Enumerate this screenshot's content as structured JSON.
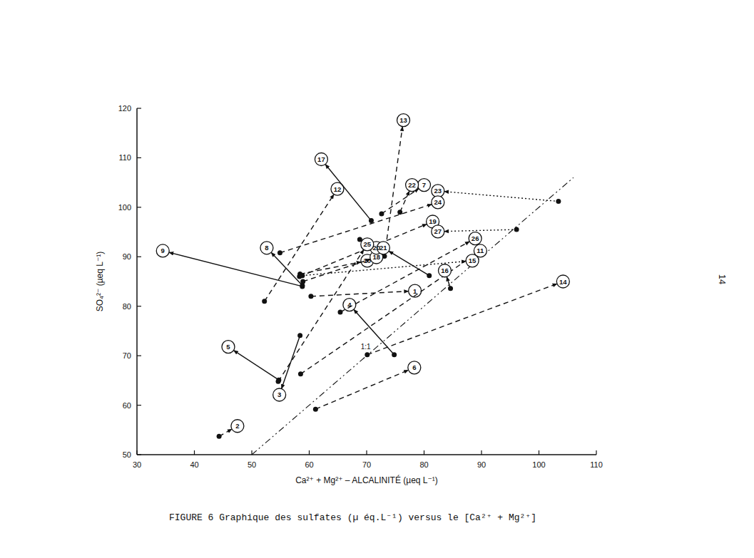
{
  "chart_data": {
    "type": "scatter",
    "title": "FIGURE 6  Graphique des sulfates (µ éq.L⁻¹) versus le [Ca²⁺ + Mg²⁺]",
    "page_number": "14",
    "x_label": "Ca²⁺ + Mg²⁺ – ALCALINITÉ  (µeq L⁻¹)",
    "y_label": "SO₄²⁻  (µeq L⁻¹)",
    "xlim": [
      30,
      110
    ],
    "ylim": [
      50,
      120
    ],
    "xticks": [
      30,
      40,
      50,
      60,
      70,
      80,
      90,
      100,
      110
    ],
    "yticks": [
      50,
      60,
      70,
      80,
      90,
      100,
      110,
      120
    ],
    "color": "#111111",
    "reference_line": {
      "label": "1:1",
      "x": [
        50,
        106
      ],
      "y": [
        50,
        106
      ],
      "line_style": "dashdot"
    },
    "series": [
      {
        "name": "1",
        "x": [
          60.3,
          78.4
        ],
        "values": [
          82.0,
          83.1
        ],
        "line_style": "dashed"
      },
      {
        "name": "2",
        "x": [
          44.3,
          47.5
        ],
        "values": [
          53.7,
          55.8
        ],
        "line_style": "dashed"
      },
      {
        "name": "3",
        "x": [
          58.4,
          54.8
        ],
        "values": [
          74.1,
          62.1
        ],
        "line_style": "solid"
      },
      {
        "name": "4",
        "x": [
          74.8,
          67.0
        ],
        "values": [
          70.2,
          80.3
        ],
        "line_style": "solid"
      },
      {
        "name": "5",
        "x": [
          54.7,
          45.9
        ],
        "values": [
          65.1,
          71.8
        ],
        "line_style": "solid"
      },
      {
        "name": "6",
        "x": [
          61.1,
          78.3
        ],
        "values": [
          59.2,
          67.6
        ],
        "line_style": "dashed"
      },
      {
        "name": "7",
        "x": [
          72.6,
          80.0
        ],
        "values": [
          98.7,
          104.5
        ],
        "line_style": "dashed"
      },
      {
        "name": "8",
        "x": [
          58.8,
          52.6
        ],
        "values": [
          84.2,
          91.8
        ],
        "line_style": "solid"
      },
      {
        "name": "9",
        "x": [
          58.8,
          34.5
        ],
        "values": [
          84.0,
          91.2
        ],
        "line_style": "solid"
      },
      {
        "name": "10",
        "x": [
          58.4,
          70.1
        ],
        "values": [
          86.5,
          89.2
        ],
        "line_style": "dashed"
      },
      {
        "name": "11",
        "x": [
          58.5,
          89.8
        ],
        "values": [
          66.3,
          91.2
        ],
        "line_style": "dashed"
      },
      {
        "name": "12",
        "x": [
          52.2,
          64.9
        ],
        "values": [
          81.0,
          103.7
        ],
        "line_style": "dashed"
      },
      {
        "name": "13",
        "x": [
          73.1,
          76.4
        ],
        "values": [
          90.1,
          117.6
        ],
        "line_style": "dashed"
      },
      {
        "name": "14",
        "x": [
          70.1,
          104.2
        ],
        "values": [
          70.2,
          85.0
        ],
        "line_style": "dashed"
      },
      {
        "name": "15",
        "x": [
          58.8,
          88.4
        ],
        "values": [
          86.2,
          89.2
        ],
        "line_style": "dotted"
      },
      {
        "name": "16",
        "x": [
          84.6,
          83.6
        ],
        "values": [
          83.6,
          87.2
        ],
        "line_style": "solid"
      },
      {
        "name": "17",
        "x": [
          70.8,
          62.1
        ],
        "values": [
          97.3,
          109.7
        ],
        "line_style": "solid"
      },
      {
        "name": "18",
        "x": [
          58.9,
          71.7
        ],
        "values": [
          85.0,
          89.9
        ],
        "line_style": "dashed"
      },
      {
        "name": "19",
        "x": [
          58.3,
          81.5
        ],
        "values": [
          86.0,
          97.1
        ],
        "line_style": "dashed"
      },
      {
        "name": "20",
        "x": [
          68.8,
          71.7
        ],
        "values": [
          93.5,
          91.8
        ],
        "line_style": "dashed"
      },
      {
        "name": "21",
        "x": [
          80.9,
          72.9
        ],
        "values": [
          86.2,
          91.8
        ],
        "line_style": "solid"
      },
      {
        "name": "22",
        "x": [
          75.8,
          77.9
        ],
        "values": [
          99.0,
          104.5
        ],
        "line_style": "dashed"
      },
      {
        "name": "23",
        "x": [
          103.4,
          82.4
        ],
        "values": [
          101.2,
          103.3
        ],
        "line_style": "dotted"
      },
      {
        "name": "24",
        "x": [
          54.9,
          82.4
        ],
        "values": [
          90.8,
          101.0
        ],
        "line_style": "dashed"
      },
      {
        "name": "25",
        "x": [
          54.6,
          70.1
        ],
        "values": [
          64.8,
          92.5
        ],
        "line_style": "dashed"
      },
      {
        "name": "26",
        "x": [
          65.4,
          88.9
        ],
        "values": [
          78.8,
          93.7
        ],
        "line_style": "dashed"
      },
      {
        "name": "27",
        "x": [
          96.1,
          82.4
        ],
        "values": [
          95.5,
          95.1
        ],
        "line_style": "dotted"
      }
    ]
  }
}
